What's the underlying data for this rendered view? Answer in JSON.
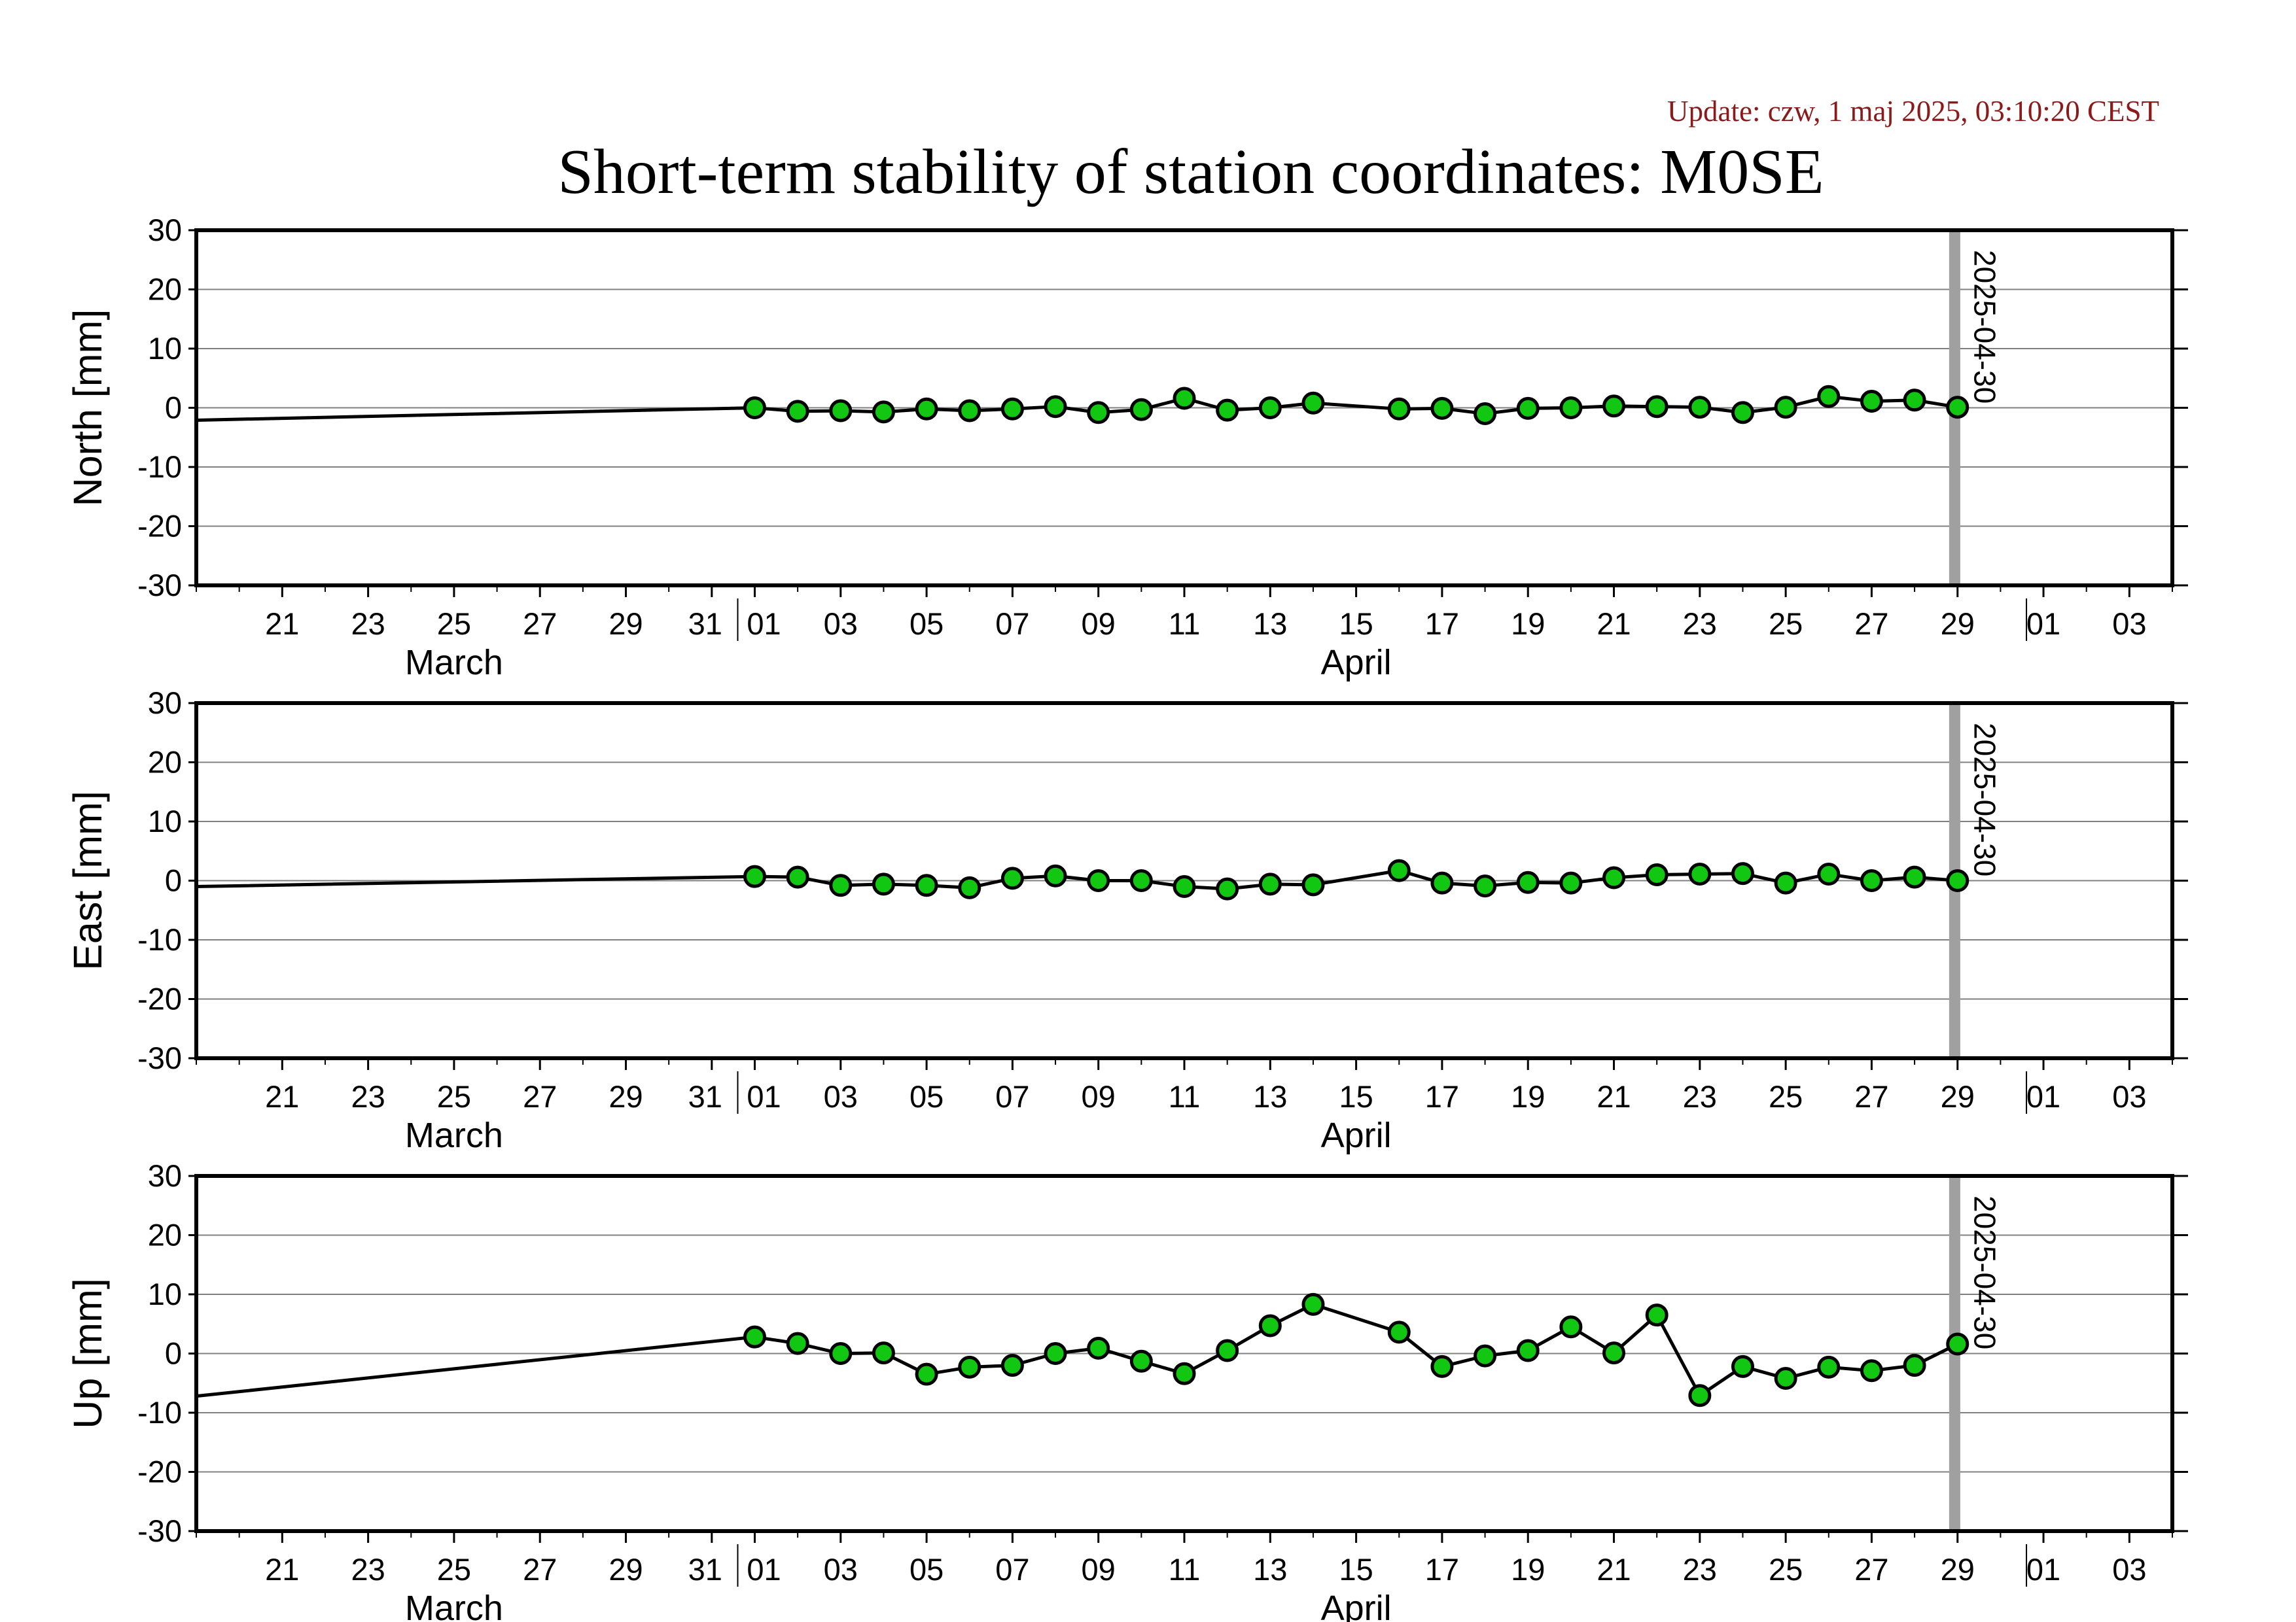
{
  "header": {
    "update": "Update: czw, 1 maj 2025, 03:10:20 CEST",
    "title": "Short-term stability of station coordinates: M0SE"
  },
  "style": {
    "line_color": "#000000",
    "point_fill": "#11c711",
    "point_stroke": "#000000",
    "grid_color": "#808080",
    "marker_color": "#a0a0a0",
    "update_color": "#8b1a1a"
  },
  "chart_data": [
    {
      "type": "line",
      "ylabel": "North [mm]",
      "ylim": [
        -30,
        30
      ],
      "yticks": [
        30,
        20,
        10,
        0,
        -10,
        -20,
        -30
      ],
      "xlim": [
        "2025-03-19",
        "2025-05-04"
      ],
      "xtick_labels": [
        "21",
        "23",
        "25",
        "27",
        "29",
        "31",
        "01",
        "03",
        "05",
        "07",
        "09",
        "11",
        "13",
        "15",
        "17",
        "19",
        "21",
        "23",
        "25",
        "27",
        "29",
        "01",
        "03"
      ],
      "month_labels": [
        "March",
        "April"
      ],
      "grid": true,
      "marker": {
        "date": "2025-04-30",
        "label": "2025-04-30"
      },
      "line_start": {
        "date": "2025-03-19",
        "value": -2.1
      },
      "series": [
        {
          "x": [
            "2025-04-01",
            "2025-04-02",
            "2025-04-03",
            "2025-04-04",
            "2025-04-05",
            "2025-04-06",
            "2025-04-07",
            "2025-04-08",
            "2025-04-09",
            "2025-04-10",
            "2025-04-11",
            "2025-04-12",
            "2025-04-13",
            "2025-04-14",
            "2025-04-16",
            "2025-04-17",
            "2025-04-18",
            "2025-04-19",
            "2025-04-20",
            "2025-04-21",
            "2025-04-22",
            "2025-04-23",
            "2025-04-24",
            "2025-04-25",
            "2025-04-26",
            "2025-04-27",
            "2025-04-28",
            "2025-04-29"
          ],
          "values": [
            0.0,
            -0.6,
            -0.5,
            -0.7,
            -0.2,
            -0.5,
            -0.2,
            0.2,
            -0.8,
            -0.3,
            1.6,
            -0.4,
            0.0,
            0.8,
            -0.2,
            -0.1,
            -1.0,
            -0.1,
            0.0,
            0.3,
            0.2,
            0.1,
            -0.8,
            0.1,
            1.9,
            1.1,
            1.3,
            0.1
          ]
        }
      ]
    },
    {
      "type": "line",
      "ylabel": "East [mm]",
      "ylim": [
        -30,
        30
      ],
      "yticks": [
        30,
        20,
        10,
        0,
        -10,
        -20,
        -30
      ],
      "xlim": [
        "2025-03-19",
        "2025-05-04"
      ],
      "xtick_labels": [
        "21",
        "23",
        "25",
        "27",
        "29",
        "31",
        "01",
        "03",
        "05",
        "07",
        "09",
        "11",
        "13",
        "15",
        "17",
        "19",
        "21",
        "23",
        "25",
        "27",
        "29",
        "01",
        "03"
      ],
      "month_labels": [
        "March",
        "April"
      ],
      "grid": true,
      "marker": {
        "date": "2025-04-30",
        "label": "2025-04-30"
      },
      "line_start": {
        "date": "2025-03-19",
        "value": -1.0
      },
      "series": [
        {
          "x": [
            "2025-04-01",
            "2025-04-02",
            "2025-04-03",
            "2025-04-04",
            "2025-04-05",
            "2025-04-06",
            "2025-04-07",
            "2025-04-08",
            "2025-04-09",
            "2025-04-10",
            "2025-04-11",
            "2025-04-12",
            "2025-04-13",
            "2025-04-14",
            "2025-04-16",
            "2025-04-17",
            "2025-04-18",
            "2025-04-19",
            "2025-04-20",
            "2025-04-21",
            "2025-04-22",
            "2025-04-23",
            "2025-04-24",
            "2025-04-25",
            "2025-04-26",
            "2025-04-27",
            "2025-04-28",
            "2025-04-29"
          ],
          "values": [
            0.7,
            0.6,
            -0.8,
            -0.6,
            -0.8,
            -1.2,
            0.4,
            0.8,
            0.0,
            0.0,
            -1.0,
            -1.4,
            -0.6,
            -0.7,
            1.7,
            -0.4,
            -0.9,
            -0.3,
            -0.4,
            0.5,
            1.0,
            1.1,
            1.2,
            -0.4,
            1.1,
            0.0,
            0.6,
            0.0
          ]
        }
      ]
    },
    {
      "type": "line",
      "ylabel": "Up [mm]",
      "ylim": [
        -30,
        30
      ],
      "yticks": [
        30,
        20,
        10,
        0,
        -10,
        -20,
        -30
      ],
      "xlim": [
        "2025-03-19",
        "2025-05-04"
      ],
      "xtick_labels": [
        "21",
        "23",
        "25",
        "27",
        "29",
        "31",
        "01",
        "03",
        "05",
        "07",
        "09",
        "11",
        "13",
        "15",
        "17",
        "19",
        "21",
        "23",
        "25",
        "27",
        "29",
        "01",
        "03"
      ],
      "month_labels": [
        "March",
        "April"
      ],
      "grid": true,
      "marker": {
        "date": "2025-04-30",
        "label": "2025-04-30"
      },
      "line_start": {
        "date": "2025-03-19",
        "value": -7.2
      },
      "series": [
        {
          "x": [
            "2025-04-01",
            "2025-04-02",
            "2025-04-03",
            "2025-04-04",
            "2025-04-05",
            "2025-04-06",
            "2025-04-07",
            "2025-04-08",
            "2025-04-09",
            "2025-04-10",
            "2025-04-11",
            "2025-04-12",
            "2025-04-13",
            "2025-04-14",
            "2025-04-16",
            "2025-04-17",
            "2025-04-18",
            "2025-04-19",
            "2025-04-20",
            "2025-04-21",
            "2025-04-22",
            "2025-04-23",
            "2025-04-24",
            "2025-04-25",
            "2025-04-26",
            "2025-04-27",
            "2025-04-28",
            "2025-04-29"
          ],
          "values": [
            2.8,
            1.7,
            0.0,
            0.1,
            -3.5,
            -2.3,
            -2.0,
            0.0,
            0.9,
            -1.3,
            -3.4,
            0.5,
            4.7,
            8.3,
            3.6,
            -2.2,
            -0.4,
            0.5,
            4.5,
            0.1,
            6.5,
            -7.1,
            -2.2,
            -4.2,
            -2.3,
            -2.9,
            -2.0,
            1.6
          ]
        }
      ]
    }
  ]
}
